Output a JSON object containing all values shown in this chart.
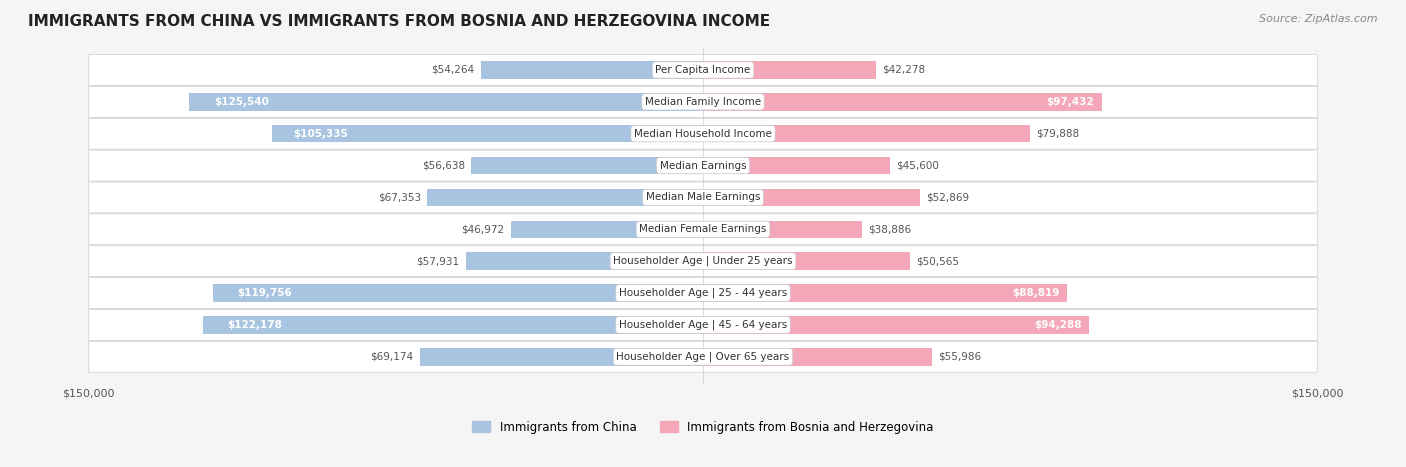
{
  "title": "IMMIGRANTS FROM CHINA VS IMMIGRANTS FROM BOSNIA AND HERZEGOVINA INCOME",
  "source": "Source: ZipAtlas.com",
  "categories": [
    "Per Capita Income",
    "Median Family Income",
    "Median Household Income",
    "Median Earnings",
    "Median Male Earnings",
    "Median Female Earnings",
    "Householder Age | Under 25 years",
    "Householder Age | 25 - 44 years",
    "Householder Age | 45 - 64 years",
    "Householder Age | Over 65 years"
  ],
  "china_values": [
    54264,
    125540,
    105335,
    56638,
    67353,
    46972,
    57931,
    119756,
    122178,
    69174
  ],
  "bosnia_values": [
    42278,
    97432,
    79888,
    45600,
    52869,
    38886,
    50565,
    88819,
    94288,
    55986
  ],
  "china_labels": [
    "$54,264",
    "$125,540",
    "$105,335",
    "$56,638",
    "$67,353",
    "$46,972",
    "$57,931",
    "$119,756",
    "$122,178",
    "$69,174"
  ],
  "bosnia_labels": [
    "$42,278",
    "$97,432",
    "$79,888",
    "$45,600",
    "$52,869",
    "$38,886",
    "$50,565",
    "$88,819",
    "$94,288",
    "$55,986"
  ],
  "china_color": "#a8c4e0",
  "china_color_solid": "#6fa8dc",
  "bosnia_color": "#f4a7b9",
  "bosnia_color_solid": "#f06292",
  "china_label_color_thresh": 80000,
  "bosnia_label_color_thresh": 80000,
  "max_value": 150000,
  "legend_china": "Immigrants from China",
  "legend_bosnia": "Immigrants from Bosnia and Herzegovina",
  "bg_color": "#f5f5f5",
  "row_bg_color": "#ffffff",
  "axis_label": "$150,000"
}
